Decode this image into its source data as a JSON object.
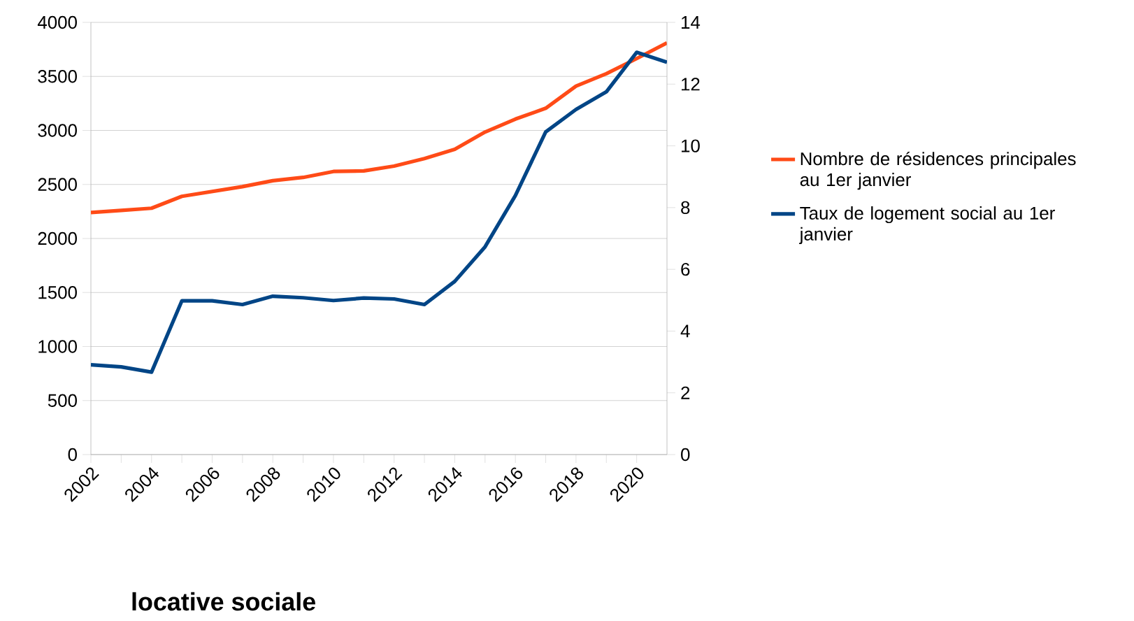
{
  "chart_data": {
    "type": "line",
    "x": [
      2002,
      2003,
      2004,
      2005,
      2006,
      2007,
      2008,
      2009,
      2010,
      2011,
      2012,
      2013,
      2014,
      2015,
      2016,
      2017,
      2018,
      2019,
      2020,
      2021
    ],
    "series": [
      {
        "name": "Nombre de résidences principales au 1er janvier",
        "color": "#ff4b17",
        "values": [
          2240,
          2260,
          2280,
          2390,
          2435,
          2480,
          2535,
          2565,
          2620,
          2625,
          2670,
          2740,
          2825,
          2985,
          3105,
          3205,
          3410,
          3525,
          3665,
          3810
        ]
      },
      {
        "name": "Taux de logement social au 1er janvier",
        "color": "#004586",
        "axis": "y2",
        "values": [
          2.91,
          2.84,
          2.67,
          4.98,
          4.98,
          4.86,
          5.13,
          5.08,
          4.99,
          5.07,
          5.04,
          4.86,
          5.61,
          6.73,
          8.39,
          10.45,
          11.18,
          11.75,
          13.03,
          12.71
        ]
      }
    ],
    "xlim": [
      2002,
      2021
    ],
    "xticks": [
      2002,
      2004,
      2006,
      2008,
      2010,
      2012,
      2014,
      2016,
      2018,
      2020
    ],
    "ylim": [
      0,
      4000
    ],
    "yticks": [
      0,
      500,
      1000,
      1500,
      2000,
      2500,
      3000,
      3500,
      4000
    ],
    "y2lim": [
      0,
      14
    ],
    "y2ticks": [
      0,
      2,
      4,
      6,
      8,
      10,
      12,
      14
    ],
    "grid": "y",
    "legend": "right",
    "marker": "none",
    "line_style": "solid",
    "annotations": [
      "locative sociale"
    ]
  }
}
